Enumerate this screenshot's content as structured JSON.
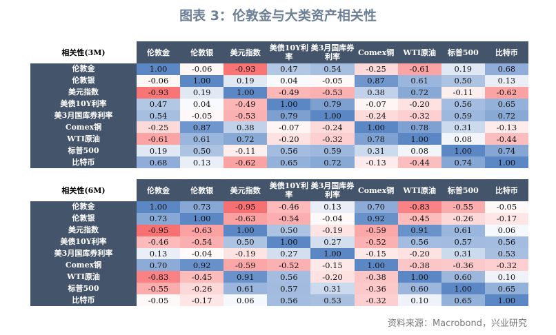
{
  "title": "图表 3：伦敦金与大类资产相关性",
  "source": "资料来源：Macrobond，兴业研究",
  "colors": {
    "header_bg": "#44546a",
    "positive": "#5b87c5",
    "negative": "#f8696b",
    "neutral": "#ffffff"
  },
  "chart_data": [
    {
      "type": "heatmap",
      "title": "相关性(3M)",
      "labels": [
        "伦敦金",
        "伦敦银",
        "美元指数",
        "美债10Y利率",
        "美3月国库券利率",
        "Comex铜",
        "WTI原油",
        "标普500",
        "比特币"
      ],
      "values": [
        [
          1.0,
          -0.06,
          -0.93,
          0.47,
          0.54,
          -0.25,
          -0.61,
          0.19,
          0.68
        ],
        [
          -0.06,
          1.0,
          0.19,
          0.04,
          -0.05,
          0.87,
          0.61,
          0.5,
          0.13
        ],
        [
          -0.93,
          0.19,
          1.0,
          -0.49,
          -0.53,
          0.38,
          0.72,
          -0.11,
          -0.62
        ],
        [
          0.47,
          0.04,
          -0.49,
          1.0,
          0.79,
          -0.07,
          -0.2,
          0.56,
          0.65
        ],
        [
          0.54,
          -0.05,
          -0.53,
          0.79,
          1.0,
          -0.24,
          -0.32,
          0.59,
          0.72
        ],
        [
          -0.25,
          0.87,
          0.38,
          -0.07,
          -0.24,
          1.0,
          0.78,
          0.31,
          -0.13
        ],
        [
          -0.61,
          0.61,
          0.72,
          -0.2,
          -0.32,
          0.78,
          1.0,
          0.08,
          -0.44
        ],
        [
          0.19,
          0.5,
          -0.11,
          0.56,
          0.59,
          0.31,
          0.08,
          1.0,
          0.74
        ],
        [
          0.68,
          0.13,
          -0.62,
          0.65,
          0.72,
          -0.13,
          -0.44,
          0.74,
          1.0
        ]
      ]
    },
    {
      "type": "heatmap",
      "title": "相关性(6M)",
      "labels": [
        "伦敦金",
        "伦敦银",
        "美元指数",
        "美债10Y利率",
        "美3月国库券利率",
        "Comex铜",
        "WTI原油",
        "标普500",
        "比特币"
      ],
      "values": [
        [
          1.0,
          0.73,
          -0.95,
          -0.46,
          0.13,
          0.7,
          -0.83,
          -0.55,
          -0.05
        ],
        [
          0.73,
          1.0,
          -0.63,
          -0.54,
          -0.04,
          0.92,
          -0.45,
          -0.26,
          -0.17
        ],
        [
          -0.95,
          -0.63,
          1.0,
          0.5,
          -0.19,
          -0.59,
          0.91,
          0.61,
          0.06
        ],
        [
          -0.46,
          -0.54,
          0.5,
          1.0,
          0.27,
          -0.52,
          0.56,
          0.57,
          0.56
        ],
        [
          0.13,
          -0.04,
          -0.19,
          0.27,
          1.0,
          -0.15,
          -0.2,
          0.31,
          0.53
        ],
        [
          0.7,
          0.92,
          -0.59,
          -0.52,
          -0.15,
          1.0,
          -0.38,
          -0.36,
          -0.32
        ],
        [
          -0.83,
          -0.45,
          0.91,
          0.56,
          -0.2,
          -0.38,
          1.0,
          0.6,
          0.1
        ],
        [
          -0.55,
          -0.26,
          0.61,
          0.57,
          0.31,
          -0.36,
          0.6,
          1.0,
          0.65
        ],
        [
          -0.05,
          -0.17,
          0.06,
          0.56,
          0.53,
          -0.32,
          0.1,
          0.65,
          1.0
        ]
      ]
    }
  ]
}
